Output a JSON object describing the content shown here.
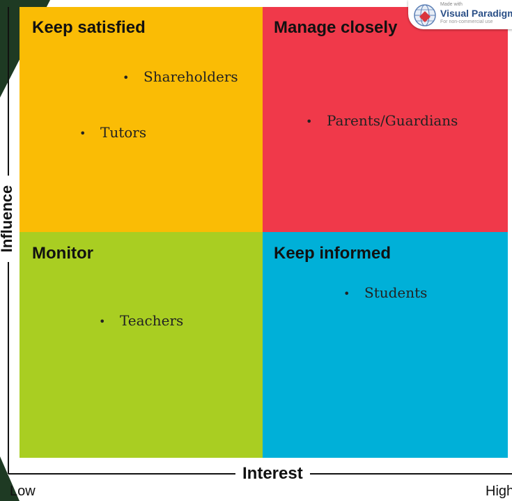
{
  "quadrants": {
    "top_left": {
      "title": "Keep satisfied",
      "items": [
        "Shareholders",
        "Tutors"
      ],
      "color": "#FABC05"
    },
    "top_right": {
      "title": "Manage closely",
      "items": [
        "Parents/Guardians"
      ],
      "color": "#F0394A"
    },
    "bottom_left": {
      "title": "Monitor",
      "items": [
        "Teachers"
      ],
      "color": "#A9CE22"
    },
    "bottom_right": {
      "title": "Keep informed",
      "items": [
        "Students"
      ],
      "color": "#00B0D8"
    }
  },
  "axes": {
    "x_label": "Interest",
    "y_label": "Influence",
    "x_low": "Low",
    "x_high": "High"
  },
  "watermark": {
    "small_text": "Made with",
    "brand": "Visual Paradigm",
    "note": "For non-commercial use"
  },
  "decoration": {
    "stripe_color": "#1E3A23"
  }
}
